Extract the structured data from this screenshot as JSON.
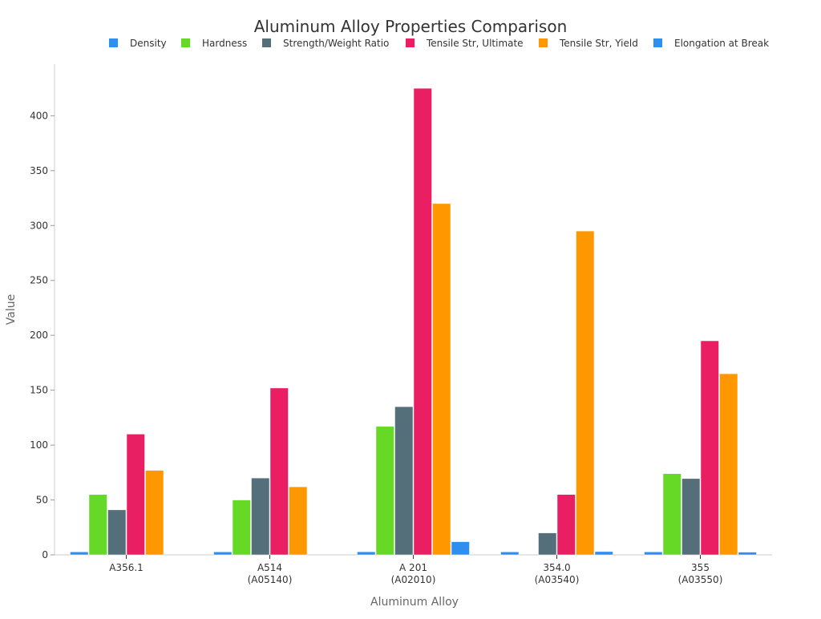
{
  "chart_data": {
    "type": "bar",
    "title": "Aluminum Alloy Properties Comparison",
    "xlabel": "Aluminum Alloy",
    "ylabel": "Value",
    "ylim": [
      0,
      447
    ],
    "yticks": [
      0,
      50,
      100,
      150,
      200,
      250,
      300,
      350,
      400
    ],
    "grid": false,
    "legend_position": "top",
    "categories": [
      "A356.1",
      "A514\n(A05140)",
      "A 201\n(A02010)",
      "354.0\n(A03540)",
      "355\n(A03550)"
    ],
    "series": [
      {
        "name": "Density",
        "color": "#2e8ff0",
        "values": [
          2.7,
          2.7,
          2.8,
          2.7,
          2.7
        ]
      },
      {
        "name": "Hardness",
        "color": "#66d926",
        "values": [
          55,
          50,
          117,
          null,
          74
        ]
      },
      {
        "name": "Strength/Weight Ratio",
        "color": "#546e7a",
        "values": [
          41,
          70,
          135,
          20,
          69.5
        ]
      },
      {
        "name": "Tensile Str, Ultimate",
        "color": "#e91e63",
        "values": [
          110,
          152,
          425,
          55,
          195
        ]
      },
      {
        "name": "Tensile Str, Yield",
        "color": "#ff9800",
        "values": [
          77,
          62,
          320,
          295,
          165
        ]
      },
      {
        "name": "Elongation at Break",
        "color": "#2e8ff0",
        "values": [
          null,
          null,
          12,
          3,
          2.5
        ]
      }
    ]
  }
}
